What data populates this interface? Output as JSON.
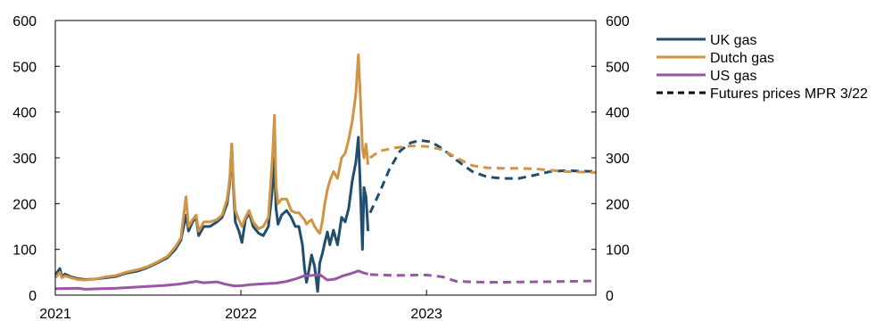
{
  "chart_data": {
    "type": "line",
    "title": "",
    "xlabel": "",
    "ylabel": "",
    "xlim": [
      "2021-01-01",
      "2023-11-30"
    ],
    "ylim": [
      0,
      600
    ],
    "y_ticks": [
      0,
      100,
      200,
      300,
      400,
      500,
      600
    ],
    "x_ticks": [
      "2021",
      "2022",
      "2023"
    ],
    "x_tick_dates": [
      "2021-01-01",
      "2022-01-01",
      "2023-01-01"
    ],
    "grid": false,
    "legend_position": "top-right",
    "colors": {
      "uk": "#1f4e6e",
      "dutch": "#d29443",
      "us": "#9b55a8",
      "futures_legend": "#000000"
    },
    "legend": [
      "UK gas",
      "Dutch gas",
      "US gas",
      "Futures prices MPR 3/22"
    ],
    "series": [
      {
        "name": "UK gas",
        "key": "uk",
        "style": "solid",
        "points": [
          [
            "2021-01-01",
            44
          ],
          [
            "2021-01-10",
            58
          ],
          [
            "2021-01-14",
            40
          ],
          [
            "2021-01-20",
            46
          ],
          [
            "2021-02-01",
            40
          ],
          [
            "2021-02-15",
            36
          ],
          [
            "2021-03-01",
            34
          ],
          [
            "2021-03-20",
            35
          ],
          [
            "2021-04-10",
            38
          ],
          [
            "2021-05-01",
            41
          ],
          [
            "2021-05-20",
            48
          ],
          [
            "2021-06-10",
            52
          ],
          [
            "2021-07-01",
            60
          ],
          [
            "2021-07-20",
            70
          ],
          [
            "2021-08-10",
            82
          ],
          [
            "2021-08-25",
            100
          ],
          [
            "2021-09-05",
            120
          ],
          [
            "2021-09-15",
            175
          ],
          [
            "2021-09-20",
            140
          ],
          [
            "2021-09-28",
            160
          ],
          [
            "2021-10-05",
            170
          ],
          [
            "2021-10-10",
            130
          ],
          [
            "2021-10-20",
            150
          ],
          [
            "2021-11-01",
            150
          ],
          [
            "2021-11-15",
            160
          ],
          [
            "2021-11-25",
            170
          ],
          [
            "2021-12-05",
            200
          ],
          [
            "2021-12-10",
            245
          ],
          [
            "2021-12-14",
            330
          ],
          [
            "2021-12-17",
            240
          ],
          [
            "2021-12-21",
            160
          ],
          [
            "2021-12-28",
            140
          ],
          [
            "2022-01-03",
            115
          ],
          [
            "2022-01-10",
            165
          ],
          [
            "2022-01-17",
            180
          ],
          [
            "2022-01-25",
            150
          ],
          [
            "2022-02-05",
            135
          ],
          [
            "2022-02-14",
            130
          ],
          [
            "2022-02-24",
            150
          ],
          [
            "2022-03-01",
            200
          ],
          [
            "2022-03-05",
            245
          ],
          [
            "2022-03-08",
            300
          ],
          [
            "2022-03-11",
            190
          ],
          [
            "2022-03-15",
            155
          ],
          [
            "2022-03-22",
            175
          ],
          [
            "2022-04-01",
            185
          ],
          [
            "2022-04-10",
            170
          ],
          [
            "2022-04-18",
            150
          ],
          [
            "2022-04-25",
            150
          ],
          [
            "2022-05-02",
            110
          ],
          [
            "2022-05-06",
            60
          ],
          [
            "2022-05-10",
            28
          ],
          [
            "2022-05-14",
            50
          ],
          [
            "2022-05-20",
            88
          ],
          [
            "2022-05-26",
            62
          ],
          [
            "2022-06-01",
            8
          ],
          [
            "2022-06-05",
            70
          ],
          [
            "2022-06-10",
            90
          ],
          [
            "2022-06-15",
            115
          ],
          [
            "2022-06-20",
            138
          ],
          [
            "2022-06-25",
            110
          ],
          [
            "2022-07-02",
            142
          ],
          [
            "2022-07-10",
            110
          ],
          [
            "2022-07-18",
            170
          ],
          [
            "2022-07-25",
            160
          ],
          [
            "2022-08-01",
            190
          ],
          [
            "2022-08-08",
            250
          ],
          [
            "2022-08-15",
            290
          ],
          [
            "2022-08-20",
            345
          ],
          [
            "2022-08-24",
            230
          ],
          [
            "2022-08-28",
            100
          ],
          [
            "2022-08-31",
            235
          ],
          [
            "2022-09-04",
            215
          ],
          [
            "2022-09-08",
            140
          ]
        ]
      },
      {
        "name": "Dutch gas",
        "key": "dutch",
        "style": "solid",
        "points": [
          [
            "2021-01-01",
            38
          ],
          [
            "2021-01-10",
            50
          ],
          [
            "2021-01-14",
            38
          ],
          [
            "2021-01-20",
            42
          ],
          [
            "2021-02-01",
            38
          ],
          [
            "2021-02-15",
            34
          ],
          [
            "2021-03-01",
            33
          ],
          [
            "2021-03-20",
            35
          ],
          [
            "2021-04-10",
            40
          ],
          [
            "2021-05-01",
            43
          ],
          [
            "2021-05-20",
            50
          ],
          [
            "2021-06-10",
            55
          ],
          [
            "2021-07-01",
            62
          ],
          [
            "2021-07-20",
            72
          ],
          [
            "2021-08-10",
            85
          ],
          [
            "2021-08-25",
            105
          ],
          [
            "2021-09-05",
            125
          ],
          [
            "2021-09-15",
            215
          ],
          [
            "2021-09-20",
            150
          ],
          [
            "2021-09-28",
            165
          ],
          [
            "2021-10-05",
            175
          ],
          [
            "2021-10-10",
            140
          ],
          [
            "2021-10-20",
            160
          ],
          [
            "2021-11-01",
            160
          ],
          [
            "2021-11-15",
            165
          ],
          [
            "2021-11-25",
            175
          ],
          [
            "2021-12-05",
            210
          ],
          [
            "2021-12-10",
            255
          ],
          [
            "2021-12-14",
            330
          ],
          [
            "2021-12-17",
            250
          ],
          [
            "2021-12-21",
            185
          ],
          [
            "2021-12-28",
            165
          ],
          [
            "2022-01-03",
            150
          ],
          [
            "2022-01-10",
            170
          ],
          [
            "2022-01-17",
            185
          ],
          [
            "2022-01-25",
            160
          ],
          [
            "2022-02-05",
            145
          ],
          [
            "2022-02-14",
            150
          ],
          [
            "2022-02-24",
            170
          ],
          [
            "2022-03-01",
            250
          ],
          [
            "2022-03-05",
            320
          ],
          [
            "2022-03-08",
            393
          ],
          [
            "2022-03-11",
            240
          ],
          [
            "2022-03-15",
            200
          ],
          [
            "2022-03-22",
            210
          ],
          [
            "2022-04-01",
            210
          ],
          [
            "2022-04-10",
            185
          ],
          [
            "2022-04-18",
            180
          ],
          [
            "2022-04-25",
            180
          ],
          [
            "2022-05-02",
            170
          ],
          [
            "2022-05-06",
            165
          ],
          [
            "2022-05-10",
            155
          ],
          [
            "2022-05-14",
            160
          ],
          [
            "2022-05-20",
            165
          ],
          [
            "2022-05-26",
            150
          ],
          [
            "2022-06-01",
            140
          ],
          [
            "2022-06-05",
            135
          ],
          [
            "2022-06-10",
            160
          ],
          [
            "2022-06-15",
            200
          ],
          [
            "2022-06-20",
            230
          ],
          [
            "2022-06-25",
            250
          ],
          [
            "2022-07-02",
            270
          ],
          [
            "2022-07-10",
            255
          ],
          [
            "2022-07-18",
            300
          ],
          [
            "2022-07-25",
            310
          ],
          [
            "2022-08-01",
            340
          ],
          [
            "2022-08-08",
            380
          ],
          [
            "2022-08-15",
            440
          ],
          [
            "2022-08-20",
            525
          ],
          [
            "2022-08-24",
            430
          ],
          [
            "2022-08-28",
            320
          ],
          [
            "2022-08-31",
            300
          ],
          [
            "2022-09-04",
            330
          ],
          [
            "2022-09-08",
            285
          ]
        ]
      },
      {
        "name": "US gas",
        "key": "us",
        "style": "solid",
        "points": [
          [
            "2021-01-01",
            14
          ],
          [
            "2021-02-15",
            15
          ],
          [
            "2021-03-01",
            13
          ],
          [
            "2021-04-01",
            14
          ],
          [
            "2021-05-01",
            15
          ],
          [
            "2021-06-01",
            17
          ],
          [
            "2021-07-01",
            19
          ],
          [
            "2021-08-01",
            21
          ],
          [
            "2021-09-01",
            24
          ],
          [
            "2021-10-05",
            30
          ],
          [
            "2021-10-20",
            27
          ],
          [
            "2021-11-15",
            29
          ],
          [
            "2021-12-01",
            24
          ],
          [
            "2021-12-20",
            20
          ],
          [
            "2022-01-05",
            21
          ],
          [
            "2022-01-20",
            23
          ],
          [
            "2022-02-05",
            24
          ],
          [
            "2022-02-20",
            25
          ],
          [
            "2022-03-10",
            26
          ],
          [
            "2022-04-01",
            30
          ],
          [
            "2022-04-20",
            36
          ],
          [
            "2022-05-05",
            42
          ],
          [
            "2022-05-20",
            43
          ],
          [
            "2022-06-05",
            45
          ],
          [
            "2022-06-20",
            33
          ],
          [
            "2022-07-05",
            35
          ],
          [
            "2022-07-20",
            42
          ],
          [
            "2022-08-05",
            47
          ],
          [
            "2022-08-20",
            53
          ],
          [
            "2022-09-01",
            48
          ],
          [
            "2022-09-08",
            46
          ]
        ]
      },
      {
        "name": "Futures prices MPR 3/22",
        "key": "uk",
        "style": "dashed",
        "points": [
          [
            "2022-09-12",
            180
          ],
          [
            "2022-10-01",
            225
          ],
          [
            "2022-10-20",
            275
          ],
          [
            "2022-11-10",
            315
          ],
          [
            "2022-12-01",
            333
          ],
          [
            "2022-12-20",
            338
          ],
          [
            "2023-01-10",
            335
          ],
          [
            "2023-02-01",
            320
          ],
          [
            "2023-03-01",
            295
          ],
          [
            "2023-04-01",
            270
          ],
          [
            "2023-05-01",
            258
          ],
          [
            "2023-06-01",
            255
          ],
          [
            "2023-07-01",
            255
          ],
          [
            "2023-08-01",
            262
          ],
          [
            "2023-09-01",
            270
          ],
          [
            "2023-10-01",
            272
          ],
          [
            "2023-11-30",
            270
          ]
        ]
      },
      {
        "name": "Futures prices MPR 3/22",
        "key": "dutch",
        "style": "dashed",
        "points": [
          [
            "2022-09-12",
            300
          ],
          [
            "2022-10-01",
            315
          ],
          [
            "2022-11-01",
            322
          ],
          [
            "2022-12-01",
            326
          ],
          [
            "2023-01-01",
            325
          ],
          [
            "2023-02-01",
            318
          ],
          [
            "2023-03-01",
            300
          ],
          [
            "2023-04-01",
            283
          ],
          [
            "2023-05-01",
            278
          ],
          [
            "2023-06-01",
            277
          ],
          [
            "2023-07-01",
            277
          ],
          [
            "2023-08-01",
            276
          ],
          [
            "2023-09-01",
            273
          ],
          [
            "2023-10-01",
            270
          ],
          [
            "2023-11-30",
            268
          ]
        ]
      },
      {
        "name": "Futures prices MPR 3/22",
        "key": "us",
        "style": "dashed",
        "points": [
          [
            "2022-09-12",
            45
          ],
          [
            "2022-11-01",
            43
          ],
          [
            "2023-01-01",
            44
          ],
          [
            "2023-02-01",
            40
          ],
          [
            "2023-03-01",
            30
          ],
          [
            "2023-05-01",
            28
          ],
          [
            "2023-08-01",
            29
          ],
          [
            "2023-11-30",
            31
          ]
        ]
      }
    ]
  }
}
